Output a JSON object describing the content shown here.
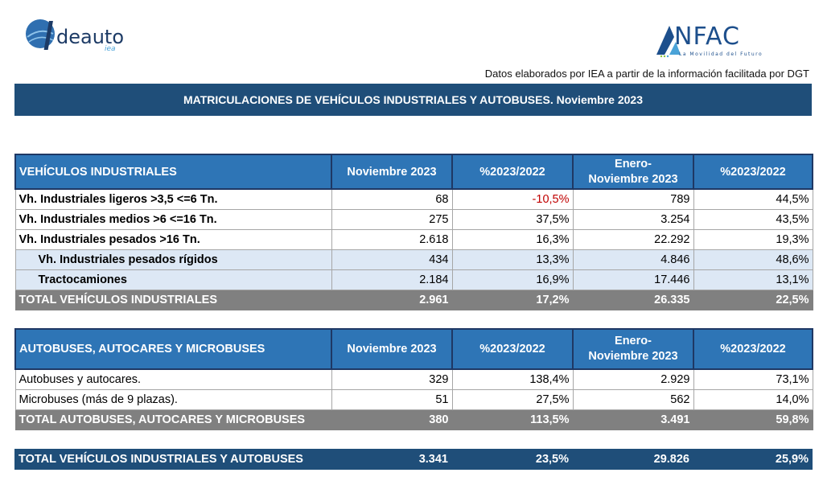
{
  "logos": {
    "ideauto": {
      "text": "deauto",
      "sub": "iea"
    },
    "anfac": {
      "text": "NFAC",
      "sub": "La Movilidad del Futuro"
    }
  },
  "source_note": "Datos elaborados por IEA a partir de la información facilitada por DGT",
  "title": "MATRICULACIONES DE VEHÍCULOS INDUSTRIALES Y AUTOBUSES.  Noviembre 2023",
  "industrial": {
    "headers": [
      "VEHÍCULOS INDUSTRIALES",
      "Noviembre 2023",
      "%2023/2022",
      "Enero-\nNoviembre 2023",
      "%2023/2022"
    ],
    "rows": [
      {
        "label": "Vh. Industriales ligeros >3,5 <=6 Tn.",
        "nov": "68",
        "pct1": "-10,5%",
        "ytd": "789",
        "pct2": "44,5%"
      },
      {
        "label": "Vh. Industriales medios >6  <=16 Tn.",
        "nov": "275",
        "pct1": "37,5%",
        "ytd": "3.254",
        "pct2": "43,5%"
      },
      {
        "label": "Vh. Industriales  pesados >16 Tn.",
        "nov": "2.618",
        "pct1": "16,3%",
        "ytd": "22.292",
        "pct2": "19,3%"
      },
      {
        "label": "Vh. Industriales pesados rígidos",
        "nov": "434",
        "pct1": "13,3%",
        "ytd": "4.846",
        "pct2": "48,6%"
      },
      {
        "label": "Tractocamiones",
        "nov": "2.184",
        "pct1": "16,9%",
        "ytd": "17.446",
        "pct2": "13,1%"
      }
    ],
    "total": {
      "label": "TOTAL VEHÍCULOS INDUSTRIALES",
      "nov": "2.961",
      "pct1": "17,2%",
      "ytd": "26.335",
      "pct2": "22,5%"
    }
  },
  "buses": {
    "headers": [
      "AUTOBUSES, AUTOCARES Y MICROBUSES",
      "Noviembre 2023",
      "%2023/2022",
      "Enero-\nNoviembre 2023",
      "%2023/2022"
    ],
    "rows": [
      {
        "label": "Autobuses y autocares.",
        "nov": "329",
        "pct1": "138,4%",
        "ytd": "2.929",
        "pct2": "73,1%"
      },
      {
        "label": "Microbuses (más de 9 plazas).",
        "nov": "51",
        "pct1": "27,5%",
        "ytd": "562",
        "pct2": "14,0%"
      }
    ],
    "total": {
      "label": "TOTAL AUTOBUSES, AUTOCARES Y MICROBUSES",
      "nov": "380",
      "pct1": "113,5%",
      "ytd": "3.491",
      "pct2": "59,8%"
    }
  },
  "grand_total": {
    "label": "TOTAL VEHÍCULOS INDUSTRIALES Y AUTOBUSES",
    "nov": "3.341",
    "pct1": "23,5%",
    "ytd": "29.826",
    "pct2": "25,9%"
  },
  "colors": {
    "header_blue": "#2e75b6",
    "title_blue": "#1f4e79",
    "total_gray": "#808080",
    "negative_red": "#c00000",
    "subrow_bg": "#dde8f5"
  }
}
